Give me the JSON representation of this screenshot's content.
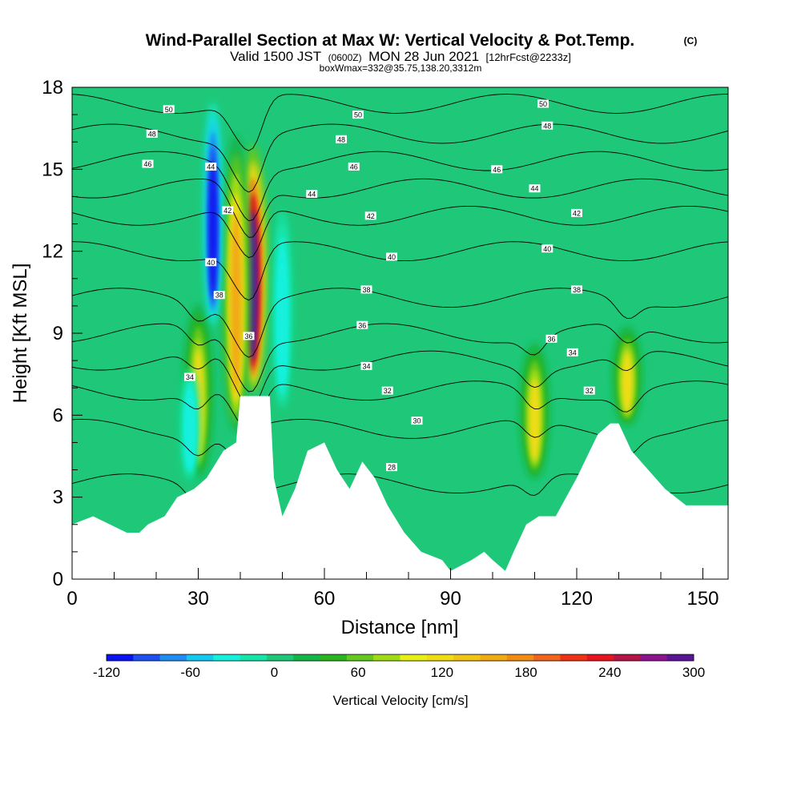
{
  "header": {
    "title": "Wind-Parallel Section at Max W: Vertical Velocity & Pot.Temp.",
    "title_mark": "(C)",
    "subtitle_a": "Valid 1500 JST",
    "subtitle_b": "(0600Z)",
    "subtitle_c": "MON 28 Jun 2021",
    "subtitle_d": "[12hrFcst@2233z]",
    "subtitle_e": "boxWmax=332@35.75,138.20,3312m"
  },
  "colors": {
    "background_fill": "#1ec878",
    "terrain": "#ffffff",
    "contour": "#000000"
  },
  "chart_data": {
    "type": "heatmap",
    "title": "Wind-Parallel Section at Max W: Vertical Velocity & Pot.Temp.",
    "xlabel": "Distance [nm]",
    "ylabel": "Height [Kft MSL]",
    "xlim": [
      0,
      156
    ],
    "ylim": [
      0,
      18
    ],
    "x_ticks": [
      "0",
      "30",
      "60",
      "90",
      "120",
      "150"
    ],
    "x_tick_values": [
      0,
      30,
      60,
      90,
      120,
      150
    ],
    "y_ticks": [
      "0",
      "3",
      "6",
      "9",
      "12",
      "15",
      "18"
    ],
    "y_tick_values": [
      0,
      3,
      6,
      9,
      12,
      15,
      18
    ],
    "grid": false,
    "colorbar": {
      "label": "Vertical Velocity [cm/s]",
      "tick_labels": [
        "-120",
        "-60",
        "0",
        "60",
        "120",
        "180",
        "240",
        "300"
      ],
      "tick_values": [
        -120,
        -60,
        0,
        60,
        120,
        180,
        240,
        300
      ],
      "levels": [
        -120,
        -100,
        -80,
        -60,
        -40,
        -20,
        0,
        20,
        40,
        60,
        80,
        100,
        120,
        140,
        160,
        180,
        200,
        220,
        240,
        260,
        280,
        300
      ],
      "colors": [
        "#0a14f0",
        "#1e50f0",
        "#1e8cf0",
        "#14c8f0",
        "#14f0dc",
        "#14e6aa",
        "#1ec878",
        "#14b446",
        "#28b41e",
        "#64c81e",
        "#a0dc14",
        "#e6f014",
        "#f0dc14",
        "#f0c314",
        "#f0aa14",
        "#f08c14",
        "#f0641e",
        "#f03214",
        "#e6141e",
        "#b41446",
        "#8c148c",
        "#5a1496"
      ]
    },
    "terrain": [
      [
        0,
        2
      ],
      [
        5,
        2.3
      ],
      [
        13,
        1.7
      ],
      [
        16,
        1.7
      ],
      [
        18,
        2
      ],
      [
        22,
        2.3
      ],
      [
        25,
        3
      ],
      [
        29,
        3.3
      ],
      [
        32,
        3.7
      ],
      [
        36,
        4.7
      ],
      [
        39,
        5
      ],
      [
        40,
        6.7
      ],
      [
        44,
        6.7
      ],
      [
        47,
        6.7
      ],
      [
        48,
        3.7
      ],
      [
        50,
        2.3
      ],
      [
        53,
        3.3
      ],
      [
        56,
        4.7
      ],
      [
        60,
        5
      ],
      [
        63,
        4
      ],
      [
        66,
        3.3
      ],
      [
        69,
        4.3
      ],
      [
        72,
        3.7
      ],
      [
        75,
        2.7
      ],
      [
        79,
        1.7
      ],
      [
        83,
        1
      ],
      [
        88,
        0.7
      ],
      [
        90,
        0.3
      ],
      [
        95,
        0.7
      ],
      [
        98,
        1
      ],
      [
        100,
        0.7
      ],
      [
        103,
        0.3
      ],
      [
        105,
        1
      ],
      [
        108,
        2
      ],
      [
        111,
        2.3
      ],
      [
        115,
        2.3
      ],
      [
        120,
        3.7
      ],
      [
        125,
        5.3
      ],
      [
        128,
        5.7
      ],
      [
        130,
        5.7
      ],
      [
        133,
        4.7
      ],
      [
        137,
        4
      ],
      [
        141,
        3.3
      ],
      [
        146,
        2.7
      ],
      [
        150,
        2.7
      ],
      [
        156,
        2.7
      ]
    ],
    "features": [
      {
        "kind": "updraft",
        "x": 43,
        "y0": 6.5,
        "y1": 16.5,
        "w_max": 300
      },
      {
        "kind": "updraft",
        "x": 39,
        "y0": 5,
        "y1": 17,
        "w_max": 160
      },
      {
        "kind": "updraft",
        "x": 30,
        "y0": 3.5,
        "y1": 10.5,
        "w_max": 120
      },
      {
        "kind": "updraft",
        "x": 110,
        "y0": 3.5,
        "y1": 9,
        "w_max": 120
      },
      {
        "kind": "updraft",
        "x": 132,
        "y0": 5.5,
        "y1": 9.5,
        "w_max": 120
      },
      {
        "kind": "downdraft",
        "x": 33.5,
        "y0": 9,
        "y1": 18,
        "w_max": -120
      },
      {
        "kind": "downdraft",
        "x": 28,
        "y0": 3.5,
        "y1": 8,
        "w_max": -40
      },
      {
        "kind": "downdraft",
        "x": 50,
        "y0": 6,
        "y1": 14,
        "w_max": -40
      }
    ],
    "theta_contours": [
      {
        "label": "28",
        "base": 3.5
      },
      {
        "label": "30",
        "base": 5.5
      },
      {
        "label": "32",
        "base": 6.9
      },
      {
        "label": "34",
        "base": 8
      },
      {
        "label": "36",
        "base": 9
      },
      {
        "label": "38",
        "base": 10.3
      },
      {
        "label": "40",
        "base": 12
      },
      {
        "label": "42",
        "base": 13.3
      },
      {
        "label": "44",
        "base": 14.3
      },
      {
        "label": "46",
        "base": 15.3
      },
      {
        "label": "48",
        "base": 16.3
      },
      {
        "label": "50",
        "base": 17.4
      }
    ],
    "theta_labels": [
      {
        "text": "50",
        "x": 23,
        "y": 17.2
      },
      {
        "text": "48",
        "x": 19,
        "y": 16.3
      },
      {
        "text": "46",
        "x": 18,
        "y": 15.2
      },
      {
        "text": "44",
        "x": 33,
        "y": 15.1
      },
      {
        "text": "42",
        "x": 37,
        "y": 13.5
      },
      {
        "text": "40",
        "x": 33,
        "y": 11.6
      },
      {
        "text": "38",
        "x": 35,
        "y": 10.4
      },
      {
        "text": "36",
        "x": 42,
        "y": 8.9
      },
      {
        "text": "34",
        "x": 28,
        "y": 7.4
      },
      {
        "text": "50",
        "x": 68,
        "y": 17.0
      },
      {
        "text": "48",
        "x": 64,
        "y": 16.1
      },
      {
        "text": "46",
        "x": 67,
        "y": 15.1
      },
      {
        "text": "44",
        "x": 57,
        "y": 14.1
      },
      {
        "text": "42",
        "x": 71,
        "y": 13.3
      },
      {
        "text": "40",
        "x": 76,
        "y": 11.8
      },
      {
        "text": "38",
        "x": 70,
        "y": 10.6
      },
      {
        "text": "36",
        "x": 69,
        "y": 9.3
      },
      {
        "text": "34",
        "x": 70,
        "y": 7.8
      },
      {
        "text": "32",
        "x": 75,
        "y": 6.9
      },
      {
        "text": "30",
        "x": 82,
        "y": 5.8
      },
      {
        "text": "28",
        "x": 76,
        "y": 4.1
      },
      {
        "text": "50",
        "x": 112,
        "y": 17.4
      },
      {
        "text": "48",
        "x": 113,
        "y": 16.6
      },
      {
        "text": "46",
        "x": 101,
        "y": 15.0
      },
      {
        "text": "44",
        "x": 110,
        "y": 14.3
      },
      {
        "text": "42",
        "x": 120,
        "y": 13.4
      },
      {
        "text": "40",
        "x": 113,
        "y": 12.1
      },
      {
        "text": "38",
        "x": 120,
        "y": 10.6
      },
      {
        "text": "36",
        "x": 114,
        "y": 8.8
      },
      {
        "text": "34",
        "x": 119,
        "y": 8.3
      },
      {
        "text": "32",
        "x": 123,
        "y": 6.9
      }
    ]
  }
}
